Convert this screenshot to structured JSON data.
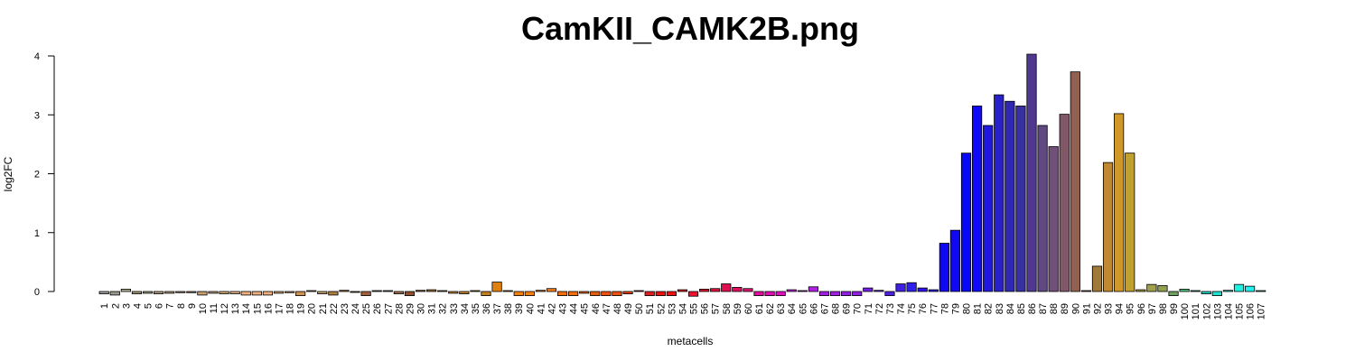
{
  "chart_data": {
    "type": "bar",
    "title": "CamKII_CAMK2B.png",
    "xlabel": "metacells",
    "ylabel": "log2FC",
    "ylim": [
      0,
      4
    ],
    "yticks": [
      0,
      1,
      2,
      3,
      4
    ],
    "grid": false,
    "legend": "none",
    "categories": [
      "1",
      "2",
      "3",
      "4",
      "5",
      "6",
      "7",
      "8",
      "9",
      "10",
      "11",
      "12",
      "13",
      "14",
      "15",
      "16",
      "17",
      "18",
      "19",
      "20",
      "21",
      "22",
      "23",
      "24",
      "25",
      "26",
      "27",
      "28",
      "29",
      "30",
      "31",
      "32",
      "33",
      "34",
      "35",
      "36",
      "37",
      "38",
      "39",
      "40",
      "41",
      "42",
      "43",
      "44",
      "45",
      "46",
      "47",
      "48",
      "49",
      "50",
      "51",
      "52",
      "53",
      "54",
      "55",
      "56",
      "57",
      "58",
      "59",
      "60",
      "61",
      "62",
      "63",
      "64",
      "65",
      "66",
      "67",
      "68",
      "69",
      "70",
      "71",
      "72",
      "73",
      "74",
      "75",
      "76",
      "77",
      "78",
      "79",
      "80",
      "81",
      "82",
      "83",
      "84",
      "85",
      "86",
      "87",
      "88",
      "89",
      "90",
      "91",
      "92",
      "93",
      "94",
      "95",
      "96",
      "97",
      "98",
      "99",
      "100",
      "101",
      "102",
      "103",
      "104",
      "105",
      "106",
      "107"
    ],
    "values": [
      -0.04,
      -0.06,
      0.04,
      -0.04,
      -0.03,
      -0.04,
      -0.03,
      -0.02,
      -0.02,
      -0.06,
      -0.03,
      -0.04,
      -0.04,
      -0.06,
      -0.06,
      -0.06,
      -0.03,
      -0.02,
      -0.07,
      0.01,
      -0.04,
      -0.06,
      0.02,
      -0.01,
      -0.07,
      0.01,
      0.01,
      -0.04,
      -0.07,
      0.02,
      0.03,
      0.01,
      -0.03,
      -0.04,
      0.01,
      -0.07,
      0.16,
      0.01,
      -0.07,
      -0.07,
      0.02,
      0.05,
      -0.07,
      -0.07,
      -0.03,
      -0.07,
      -0.07,
      -0.07,
      -0.04,
      0.01,
      -0.07,
      -0.07,
      -0.07,
      0.03,
      -0.08,
      0.04,
      0.05,
      0.13,
      0.07,
      0.05,
      -0.07,
      -0.07,
      -0.07,
      0.03,
      0.01,
      0.08,
      -0.07,
      -0.07,
      -0.07,
      -0.07,
      0.06,
      0.02,
      -0.07,
      0.13,
      0.15,
      0.06,
      0.03,
      0.82,
      1.04,
      2.35,
      3.15,
      2.82,
      3.34,
      3.23,
      3.15,
      4.03,
      2.82,
      2.46,
      3.01,
      3.73,
      0.01,
      0.43,
      2.19,
      3.02,
      2.35,
      0.03,
      0.12,
      0.1,
      -0.07,
      0.04,
      0.01,
      -0.04,
      -0.07,
      0.02,
      0.12,
      0.09,
      0.01
    ],
    "colors": [
      "#a0a0a0",
      "#9a9a8a",
      "#b0b090",
      "#a09878",
      "#a0a080",
      "#b09a80",
      "#b0a080",
      "#a08a70",
      "#9a8a70",
      "#c8a070",
      "#c0a080",
      "#d0a878",
      "#e0b088",
      "#f0b080",
      "#f0b080",
      "#f0b080",
      "#d8a878",
      "#c8a070",
      "#d09050",
      "#c8a070",
      "#c0a070",
      "#b08040",
      "#a07030",
      "#a08060",
      "#a06040",
      "#908070",
      "#a08870",
      "#a07050",
      "#905030",
      "#905030",
      "#a07030",
      "#b08030",
      "#c08030",
      "#c08030",
      "#b08030",
      "#c08020",
      "#e08010",
      "#d08020",
      "#f08010",
      "#f08010",
      "#e07010",
      "#f08020",
      "#f07010",
      "#f07010",
      "#e06010",
      "#e06010",
      "#f05010",
      "#f05010",
      "#f04010",
      "#e03010",
      "#e02020",
      "#f01010",
      "#f01010",
      "#e01020",
      "#f01030",
      "#e01030",
      "#e01040",
      "#e01050",
      "#e01060",
      "#e01070",
      "#e010a0",
      "#e010b0",
      "#e010c0",
      "#c020d0",
      "#c020e0",
      "#b020e0",
      "#a020e0",
      "#a020e0",
      "#9020e0",
      "#9020e0",
      "#7020e0",
      "#6020e0",
      "#5020e0",
      "#4020e0",
      "#3020f0",
      "#3010f0",
      "#2010f0",
      "#1008f0",
      "#1008f0",
      "#0808f8",
      "#1008f8",
      "#2018e0",
      "#2820c8",
      "#3028b0",
      "#3830a0",
      "#503890",
      "#604880",
      "#705078",
      "#805868",
      "#906050",
      "#907040",
      "#a07838",
      "#c08830",
      "#d09828",
      "#c0a030",
      "#b0a040",
      "#a0a050",
      "#90a050",
      "#70a060",
      "#50c080",
      "#30c0a0",
      "#20d0c0",
      "#20e0d0",
      "#20e0e0",
      "#20f0e0",
      "#20f0f0",
      "#60e0d0"
    ]
  }
}
